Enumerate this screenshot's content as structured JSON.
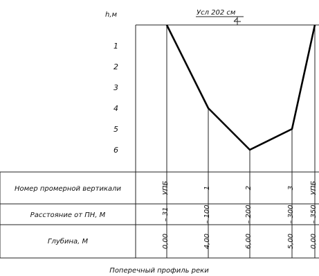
{
  "depth_axis": {
    "label": "h,м",
    "ticks": [
      "1",
      "2",
      "3",
      "4",
      "5",
      "6"
    ]
  },
  "water_level": {
    "label": "Усл 202 см"
  },
  "table": {
    "rows": [
      {
        "label": "Номер промерной вертикали",
        "key": "vertical"
      },
      {
        "label": "Расстояние от ПН, М",
        "key": "distance"
      },
      {
        "label": "Глубина, М",
        "key": "depth"
      }
    ],
    "columns": [
      {
        "vertical": "УПБ",
        "distance": "31",
        "depth": "0,00"
      },
      {
        "vertical": "1",
        "distance": "100",
        "depth": "4,00"
      },
      {
        "vertical": "2",
        "distance": "200",
        "depth": "6,00"
      },
      {
        "vertical": "3",
        "distance": "300",
        "depth": "5,00"
      },
      {
        "vertical": "УПБ",
        "distance": "350",
        "depth": "0,00"
      }
    ]
  },
  "chart_data": {
    "type": "line",
    "x": [
      31,
      100,
      200,
      300,
      350
    ],
    "depths": [
      0,
      4,
      6,
      5,
      0
    ],
    "ylabel": "h,м",
    "y_inverted": true,
    "ylim": [
      0,
      6
    ]
  },
  "caption": "Поперечный профиль реки"
}
